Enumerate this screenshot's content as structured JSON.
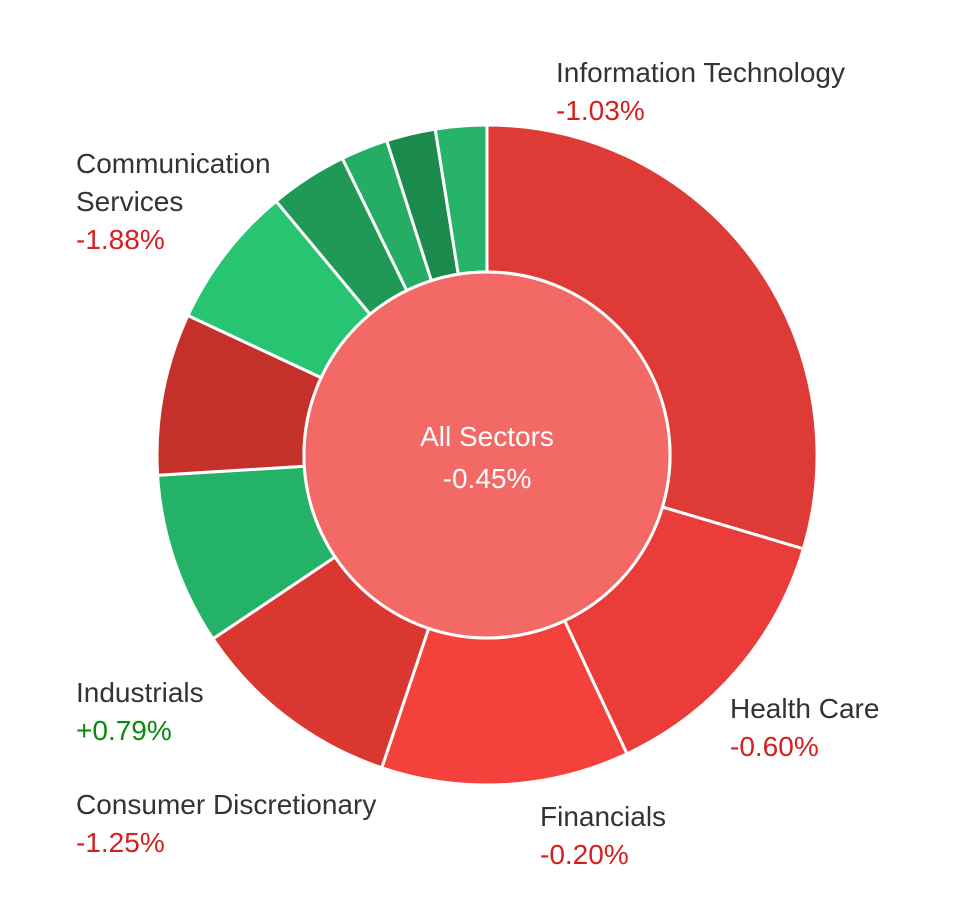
{
  "chart_data": {
    "type": "pie",
    "center": {
      "label": "All Sectors",
      "value": "-0.45%",
      "color": "#f26966"
    },
    "colors": {
      "negative_text": "#d61f1f",
      "positive_text": "#0a8a0a"
    },
    "slices": [
      {
        "key": "it",
        "name": "Information Technology",
        "change": "-1.03%",
        "weight": 29.5,
        "color": "#de3b37"
      },
      {
        "key": "hc",
        "name": "Health Care",
        "change": "-0.60%",
        "weight": 13.4,
        "color": "#ea3d3a"
      },
      {
        "key": "fin",
        "name": "Financials",
        "change": "-0.20%",
        "weight": 12.1,
        "color": "#f4413c"
      },
      {
        "key": "cd",
        "name": "Consumer Discretionary",
        "change": "-1.25%",
        "weight": 10.4,
        "color": "#d9372f"
      },
      {
        "key": "ind",
        "name": "Industrials",
        "change": "+0.79%",
        "weight": 8.4,
        "color": "#24b268"
      },
      {
        "key": "s6",
        "name": "",
        "change": "",
        "weight": 7.9,
        "color": "#c4302a"
      },
      {
        "key": "s7",
        "name": "",
        "change": "",
        "weight": 7.0,
        "color": "#27c472"
      },
      {
        "key": "s8",
        "name": "",
        "change": "",
        "weight": 3.8,
        "color": "#1f9955"
      },
      {
        "key": "s9",
        "name": "",
        "change": "",
        "weight": 2.3,
        "color": "#25ad63"
      },
      {
        "key": "s10",
        "name": "",
        "change": "",
        "weight": 2.4,
        "color": "#1d8a4d"
      },
      {
        "key": "cs",
        "name": "Communication Services",
        "change": "-1.88%",
        "weight": 2.5,
        "color": "#27b46a"
      }
    ],
    "labels": [
      {
        "key": "it",
        "lines": [
          "Information Technology"
        ],
        "value": "-1.03%",
        "sign": "negative"
      },
      {
        "key": "cs",
        "lines": [
          "Communication",
          "Services"
        ],
        "value": "-1.88%",
        "sign": "negative"
      },
      {
        "key": "ind",
        "lines": [
          "Industrials"
        ],
        "value": "+0.79%",
        "sign": "positive"
      },
      {
        "key": "cd",
        "lines": [
          "Consumer Discretionary"
        ],
        "value": "-1.25%",
        "sign": "negative"
      },
      {
        "key": "fin",
        "lines": [
          "Financials"
        ],
        "value": "-0.20%",
        "sign": "negative"
      },
      {
        "key": "hc",
        "lines": [
          "Health Care"
        ],
        "value": "-0.60%",
        "sign": "negative"
      }
    ]
  }
}
